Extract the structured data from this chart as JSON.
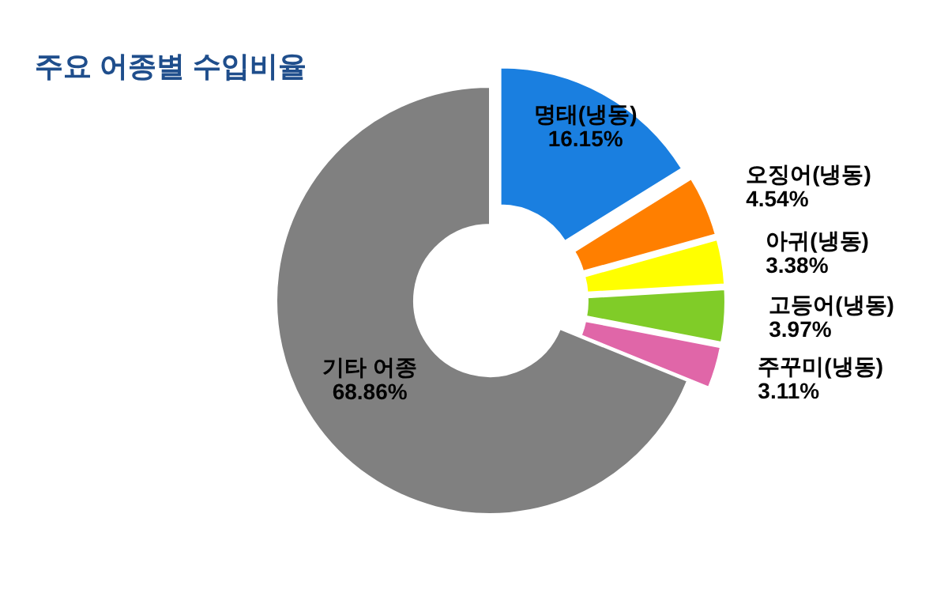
{
  "chart_data": {
    "type": "donut",
    "title": "주요 어종별 수입비율",
    "categories": [
      "명태(냉동)",
      "오징어(냉동)",
      "아귀(냉동)",
      "고등어(냉동)",
      "주꾸미(냉동)",
      "기타 어종"
    ],
    "values": [
      16.15,
      4.54,
      3.38,
      3.97,
      3.11,
      68.86
    ],
    "colors": [
      "#1a7fe0",
      "#ff7f00",
      "#ffff00",
      "#80cc28",
      "#e066a8",
      "#808080"
    ],
    "value_labels": [
      "16.15%",
      "4.54%",
      "3.38%",
      "3.97%",
      "3.11%",
      "68.86%"
    ]
  }
}
